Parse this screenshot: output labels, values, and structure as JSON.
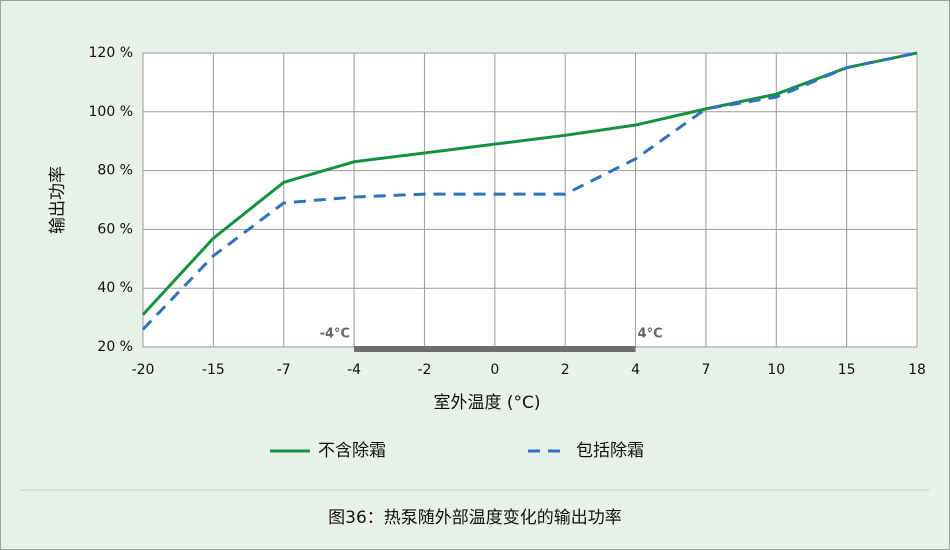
{
  "chart_data": {
    "type": "line",
    "caption": "图36：热泵随外部温度变化的输出功率",
    "x_label": "室外温度 (°C)",
    "y_label": "输出功率",
    "categories": [
      "-20",
      "-15",
      "-7",
      "-4",
      "-2",
      "0",
      "2",
      "4",
      "7",
      "10",
      "15",
      "18"
    ],
    "series": [
      {
        "name": "不含除霜",
        "color": "#16913f",
        "dash": "solid",
        "values": [
          31,
          57,
          76,
          83,
          86,
          89,
          92,
          95.5,
          101,
          106,
          115,
          120
        ]
      },
      {
        "name": "包括除霜",
        "color": "#2f73bd",
        "dash": "dashed",
        "values": [
          26,
          51,
          69,
          71,
          72,
          72,
          72,
          84,
          101,
          105,
          115,
          120
        ]
      }
    ],
    "ylim": [
      20,
      120
    ],
    "yticks": [
      {
        "value": 20,
        "label": "20 %"
      },
      {
        "value": 40,
        "label": "40 %"
      },
      {
        "value": 60,
        "label": "60 %"
      },
      {
        "value": 80,
        "label": "80 %"
      },
      {
        "value": 100,
        "label": "100 %"
      },
      {
        "value": 120,
        "label": "120 %"
      }
    ],
    "grid": true,
    "annotations": [
      {
        "text": "-4°C",
        "x": "-4"
      },
      {
        "text": "4°C",
        "x": "4"
      }
    ]
  }
}
